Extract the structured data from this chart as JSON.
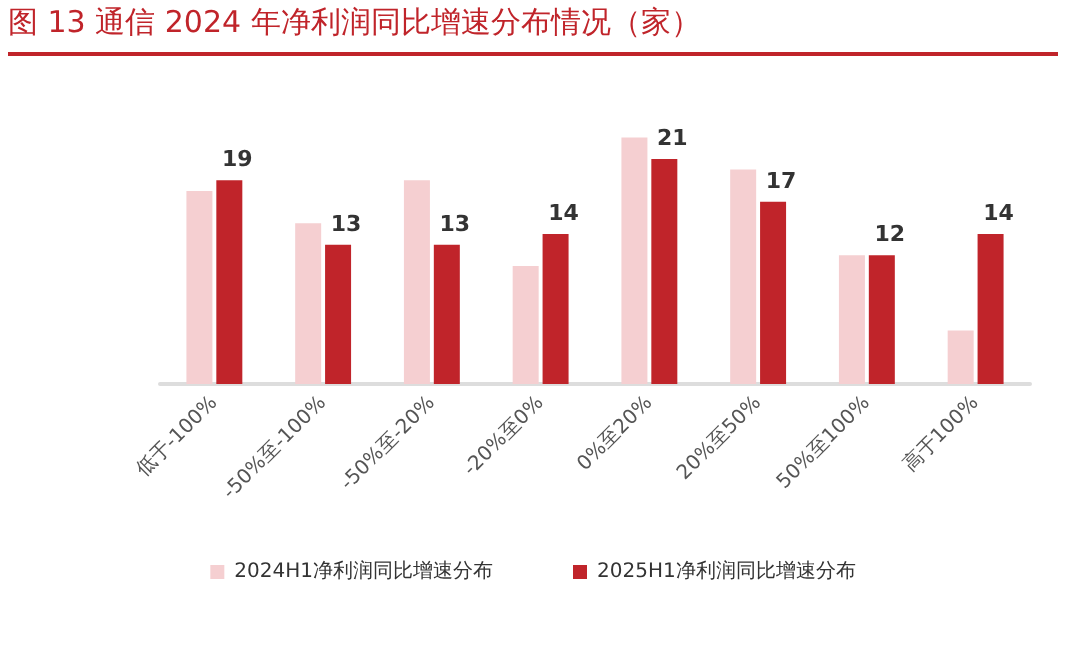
{
  "chart_data": {
    "type": "bar",
    "title": "图 13 通信 2024 年净利润同比增速分布情况（家）",
    "categories": [
      "低于-100%",
      "-50%至-100%",
      "-50%至-20%",
      "-20%至0%",
      "0%至20%",
      "20%至50%",
      "50%至100%",
      "高于100%"
    ],
    "series": [
      {
        "name": "2024H1净利润同比增速分布",
        "color": "#f5cfd1",
        "values": [
          18,
          15,
          19,
          11,
          23,
          20,
          12,
          5
        ]
      },
      {
        "name": "2025H1净利润同比增速分布",
        "color": "#c0242a",
        "values": [
          19,
          13,
          13,
          14,
          21,
          17,
          12,
          14
        ],
        "value_labels": [
          "19",
          "13",
          "13",
          "14",
          "21",
          "17",
          "12",
          "14"
        ]
      }
    ],
    "tick_labels": "x",
    "legend": "bottom"
  }
}
